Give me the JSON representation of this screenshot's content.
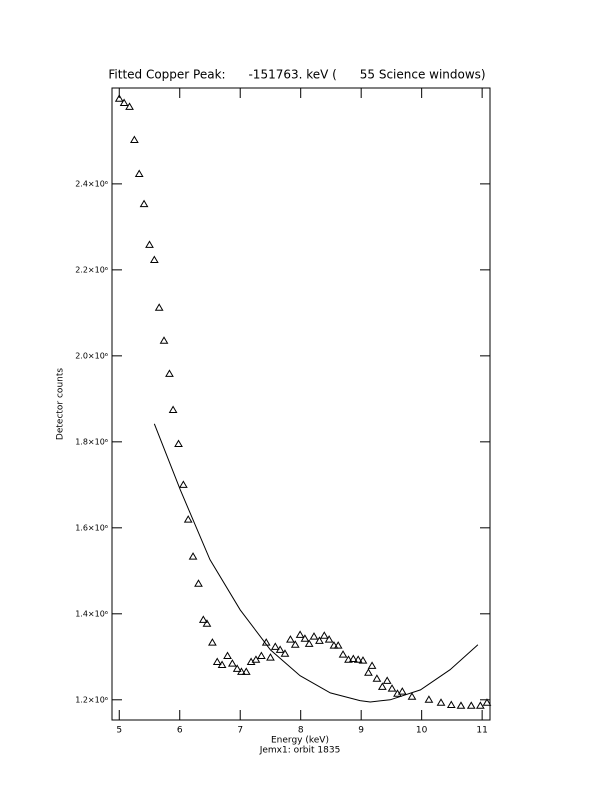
{
  "chart_data": {
    "type": "scatter",
    "title": "Fitted Copper Peak:      -151763. keV (      55 Science windows)",
    "x_label": "Energy (keV)",
    "y_label": "Detector counts",
    "subtitle": "Jemx1: orbit 1835",
    "xlim": [
      4.88,
      11.13
    ],
    "ylim": [
      1153000,
      2623000
    ],
    "xticks": [
      5,
      6,
      7,
      8,
      9,
      10,
      11
    ],
    "yticks": [
      {
        "value": 1200000,
        "label": "1.2×10⁶"
      },
      {
        "value": 1400000,
        "label": "1.4×10⁶"
      },
      {
        "value": 1600000,
        "label": "1.6×10⁶"
      },
      {
        "value": 1800000,
        "label": "1.8×10⁶"
      },
      {
        "value": 2000000,
        "label": "2.0×10⁶"
      },
      {
        "value": 2200000,
        "label": "2.2×10⁶"
      },
      {
        "value": 2400000,
        "label": "2.4×10⁶"
      }
    ],
    "series": [
      {
        "type": "scatter",
        "marker": "triangle",
        "color": "#000000",
        "x": [
          5.0,
          5.08,
          5.17,
          5.25,
          5.33,
          5.41,
          5.5,
          5.58,
          5.66,
          5.74,
          5.83,
          5.89,
          5.98,
          6.06,
          6.14,
          6.22,
          6.31,
          6.39,
          6.45,
          6.54,
          6.62,
          6.7,
          6.79,
          6.87,
          6.95,
          7.02,
          7.1,
          7.18,
          7.26,
          7.35,
          7.43,
          7.5,
          7.58,
          7.66,
          7.74,
          7.83,
          7.91,
          7.99,
          8.07,
          8.14,
          8.22,
          8.31,
          8.39,
          8.47,
          8.55,
          8.62,
          8.7,
          8.79,
          8.87,
          8.95,
          9.03,
          9.12,
          9.18,
          9.26,
          9.35,
          9.43,
          9.51,
          9.6,
          9.68,
          9.84,
          10.12,
          10.32,
          10.49,
          10.65,
          10.82,
          10.97,
          11.08
        ],
        "values": [
          2598000,
          2588000,
          2579000,
          2502000,
          2423000,
          2353000,
          2258000,
          2223000,
          2112000,
          2035000,
          1958000,
          1874000,
          1795000,
          1700000,
          1619000,
          1533000,
          1470000,
          1386000,
          1377000,
          1333000,
          1288000,
          1281000,
          1302000,
          1284000,
          1272000,
          1265000,
          1265000,
          1288000,
          1293000,
          1302000,
          1333000,
          1298000,
          1323000,
          1316000,
          1307000,
          1340000,
          1328000,
          1351000,
          1342000,
          1330000,
          1347000,
          1337000,
          1349000,
          1340000,
          1326000,
          1326000,
          1305000,
          1293000,
          1295000,
          1293000,
          1291000,
          1263000,
          1279000,
          1249000,
          1230000,
          1244000,
          1226000,
          1214000,
          1219000,
          1207000,
          1200000,
          1193000,
          1188000,
          1186000,
          1186000,
          1186000,
          1193000
        ]
      },
      {
        "type": "line",
        "color": "#000000",
        "x": [
          5.58,
          6.01,
          6.5,
          7.0,
          7.5,
          7.99,
          8.49,
          8.98,
          9.15,
          9.48,
          9.98,
          10.47,
          10.93
        ],
        "values": [
          1842000,
          1688000,
          1526000,
          1409000,
          1316000,
          1256000,
          1216000,
          1198000,
          1195000,
          1200000,
          1223000,
          1270000,
          1328000
        ]
      }
    ]
  }
}
